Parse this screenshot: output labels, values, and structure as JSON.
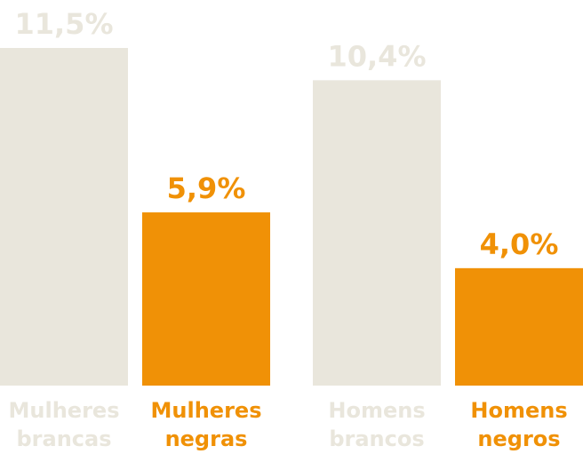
{
  "chart_data": {
    "type": "bar",
    "title": "",
    "xlabel": "",
    "ylabel": "",
    "ylim": [
      0,
      11.5
    ],
    "grid": false,
    "categories": [
      [
        "Mulheres",
        "brancas"
      ],
      [
        "Mulheres",
        "negras"
      ],
      [
        "Homens",
        "brancos"
      ],
      [
        "Homens",
        "negros"
      ]
    ],
    "values": [
      11.5,
      5.9,
      10.4,
      4.0
    ],
    "data_labels": [
      "11,5%",
      "5,9%",
      "10,4%",
      "4,0%"
    ],
    "colors": [
      "#e9e6dc",
      "#f09106",
      "#e9e6dc",
      "#f09106"
    ]
  }
}
